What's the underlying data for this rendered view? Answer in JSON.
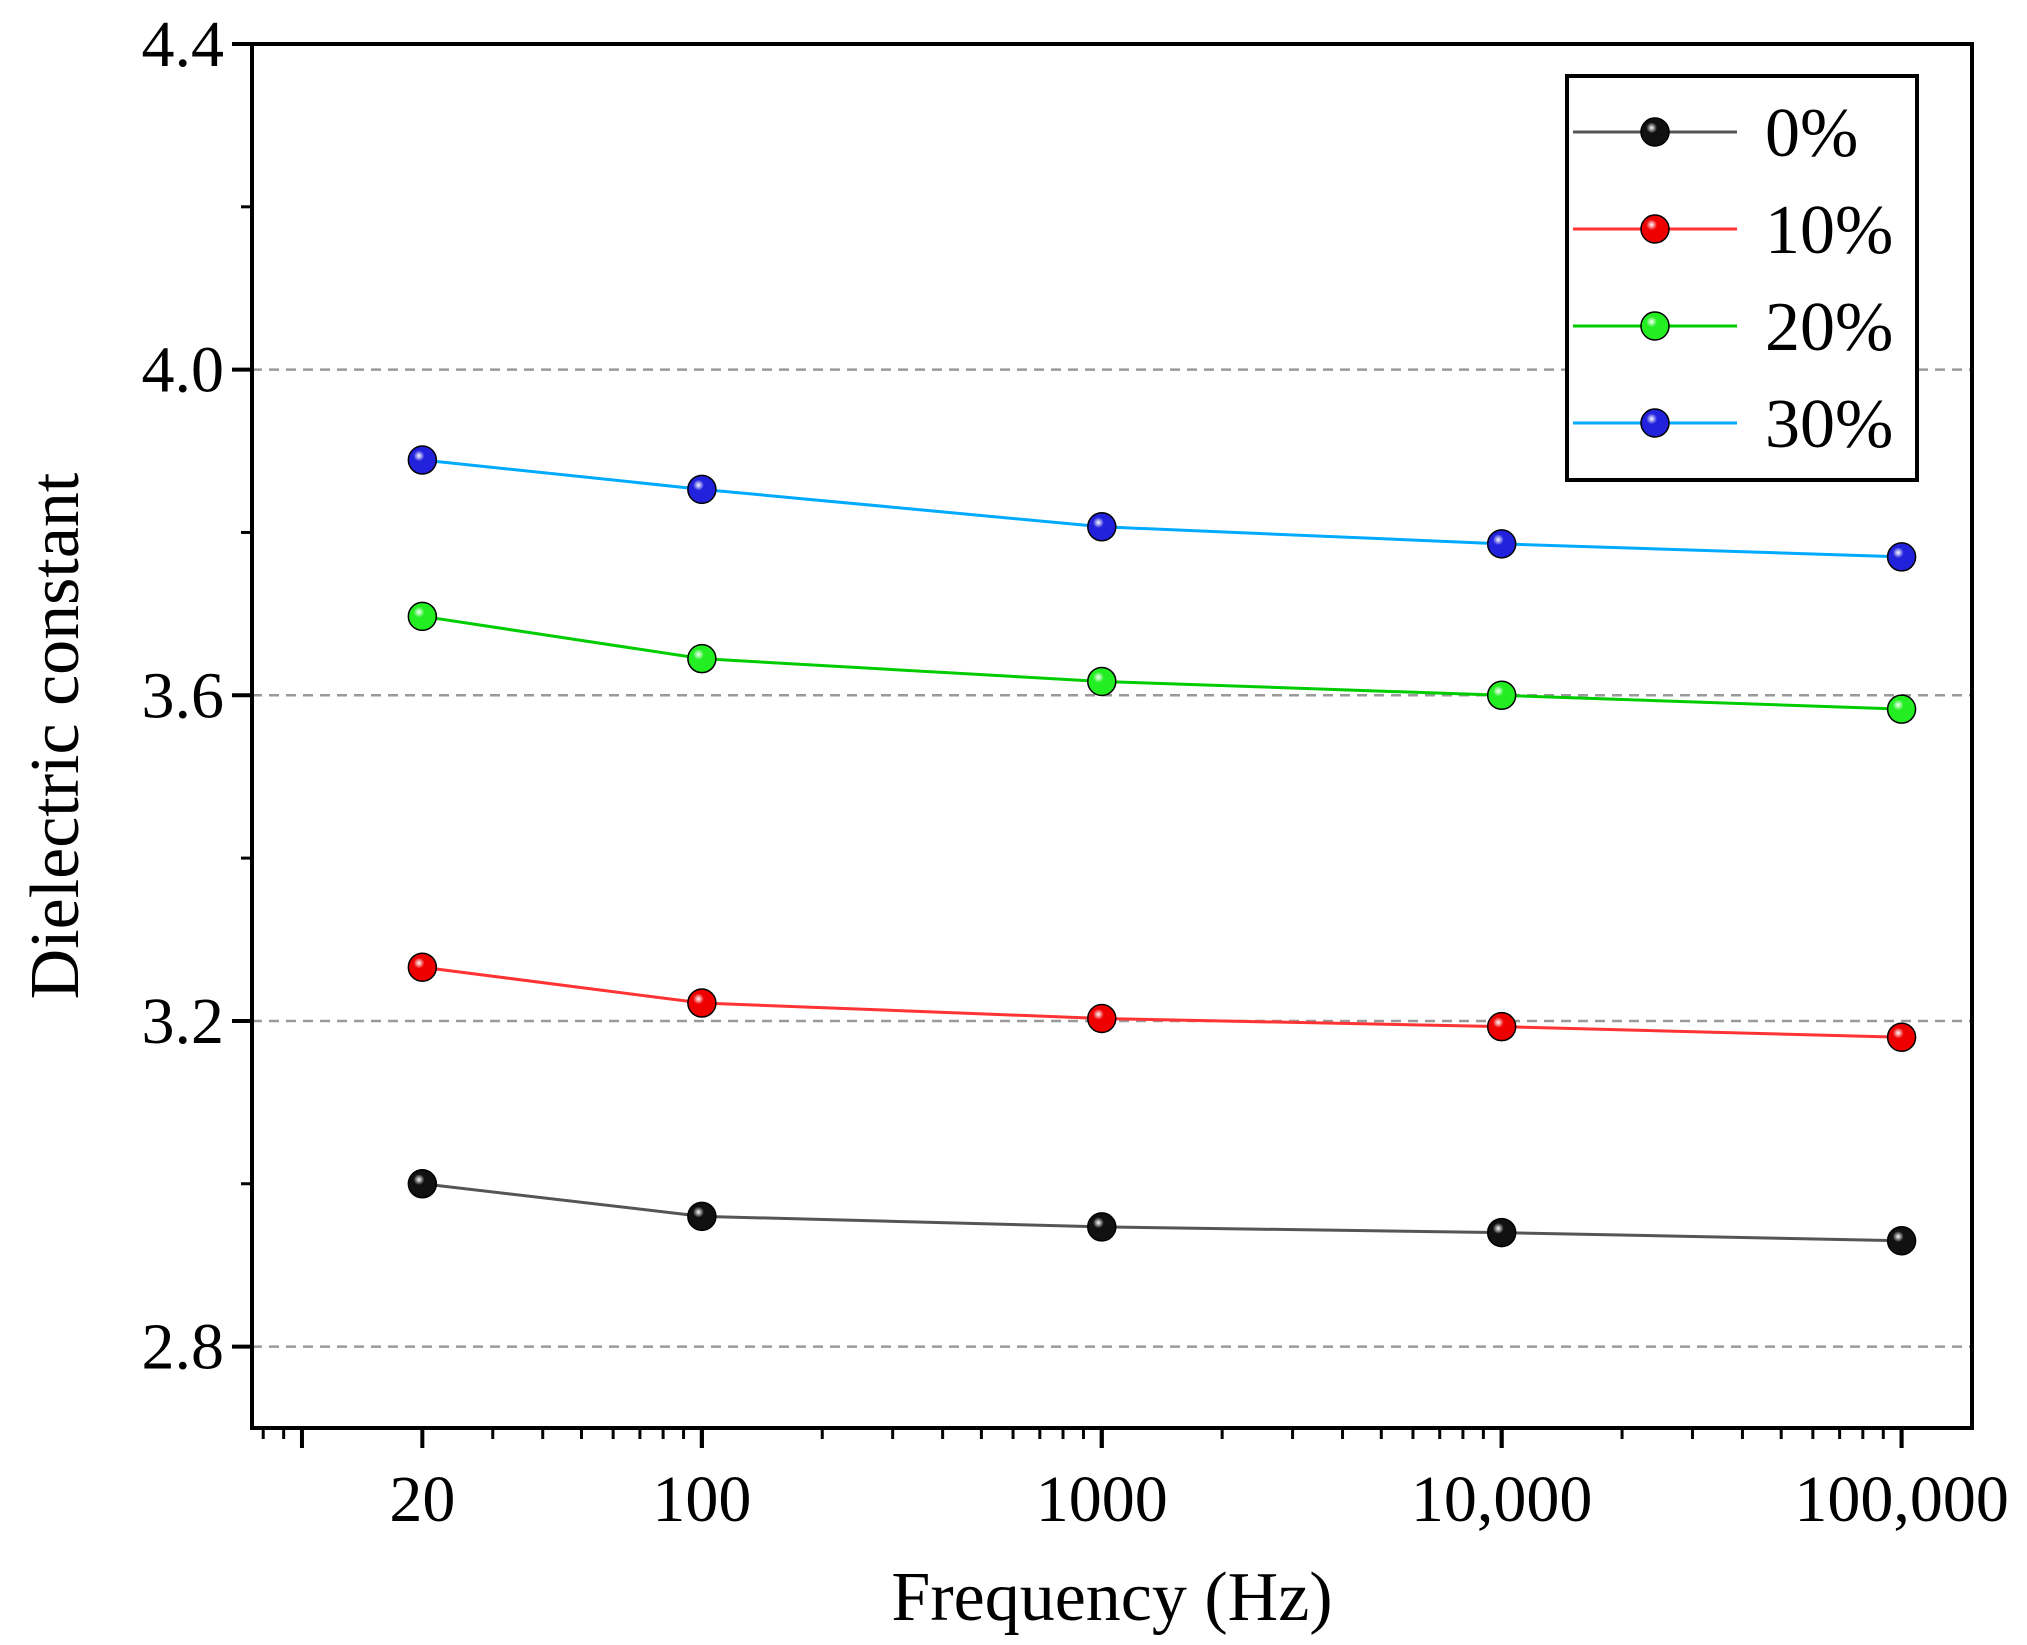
{
  "chart_data": {
    "type": "line",
    "title": "",
    "xlabel": "Frequency (Hz)",
    "ylabel": "Dielectric constant",
    "x": [
      20,
      100,
      1000,
      10000,
      100000
    ],
    "x_tick_labels": [
      "20",
      "100",
      "1000",
      "10,000",
      "100,000"
    ],
    "x_scale": "log",
    "xlim": [
      7.5,
      150000
    ],
    "ylim": [
      2.7,
      4.4
    ],
    "y_ticks": [
      2.8,
      3.2,
      3.6,
      4.0,
      4.4
    ],
    "y_tick_labels": [
      "2.8",
      "3.2",
      "3.6",
      "4.0",
      "4.4"
    ],
    "grid": "horizontal dashed",
    "legend_position": "top-right",
    "series": [
      {
        "name": "0%",
        "line_color": "#555555",
        "marker_color": "#111111",
        "values": [
          3.0,
          2.96,
          2.947,
          2.94,
          2.93
        ]
      },
      {
        "name": "10%",
        "line_color": "#ff3333",
        "marker_color": "#ee0000",
        "values": [
          3.266,
          3.222,
          3.203,
          3.193,
          3.18
        ]
      },
      {
        "name": "20%",
        "line_color": "#00cc00",
        "marker_color": "#22ee22",
        "values": [
          3.697,
          3.645,
          3.617,
          3.6,
          3.583
        ]
      },
      {
        "name": "30%",
        "line_color": "#00aaff",
        "marker_color": "#2222dd",
        "values": [
          3.889,
          3.853,
          3.807,
          3.786,
          3.77
        ]
      }
    ]
  }
}
